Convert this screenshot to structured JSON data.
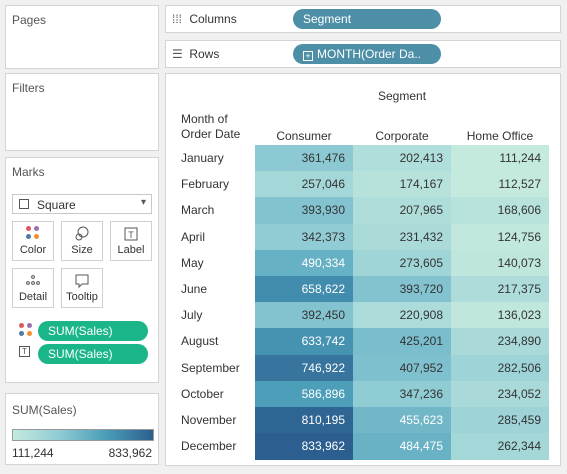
{
  "panels": {
    "pages": "Pages",
    "filters": "Filters",
    "marks": "Marks"
  },
  "shelves": {
    "columns": {
      "label": "Columns",
      "pill": "Segment"
    },
    "rows": {
      "label": "Rows",
      "pill": "MONTH(Order Da.."
    }
  },
  "marks": {
    "mark_type": "Square",
    "buttons": [
      {
        "label": "Color",
        "icon": "color-dots-icon"
      },
      {
        "label": "Size",
        "icon": "size-icon"
      },
      {
        "label": "Label",
        "icon": "label-icon"
      },
      {
        "label": "Detail",
        "icon": "detail-icon"
      },
      {
        "label": "Tooltip",
        "icon": "tooltip-icon"
      }
    ],
    "pills": [
      {
        "label": "SUM(Sales)",
        "icon": "color-dots-icon"
      },
      {
        "label": "SUM(Sales)",
        "icon": "label-icon",
        "glyph": "T"
      }
    ]
  },
  "legend": {
    "title": "SUM(Sales)",
    "min": "111,244",
    "max": "833,962",
    "min_value": 111244,
    "max_value": 833962
  },
  "table": {
    "column_title": "Segment",
    "row_header": [
      "Month of",
      "Order Date"
    ],
    "columns": [
      "Consumer",
      "Corporate",
      "Home Office"
    ],
    "rows": [
      {
        "month": "January",
        "values": [
          "361,476",
          "202,413",
          "111,244"
        ],
        "raw": [
          361476,
          202413,
          111244
        ]
      },
      {
        "month": "February",
        "values": [
          "257,046",
          "174,167",
          "112,527"
        ],
        "raw": [
          257046,
          174167,
          112527
        ]
      },
      {
        "month": "March",
        "values": [
          "393,930",
          "207,965",
          "168,606"
        ],
        "raw": [
          393930,
          207965,
          168606
        ]
      },
      {
        "month": "April",
        "values": [
          "342,373",
          "231,432",
          "124,756"
        ],
        "raw": [
          342373,
          231432,
          124756
        ]
      },
      {
        "month": "May",
        "values": [
          "490,334",
          "273,605",
          "140,073"
        ],
        "raw": [
          490334,
          273605,
          140073
        ]
      },
      {
        "month": "June",
        "values": [
          "658,622",
          "393,720",
          "217,375"
        ],
        "raw": [
          658622,
          393720,
          217375
        ]
      },
      {
        "month": "July",
        "values": [
          "392,450",
          "220,908",
          "136,023"
        ],
        "raw": [
          392450,
          220908,
          136023
        ]
      },
      {
        "month": "August",
        "values": [
          "633,742",
          "425,201",
          "234,890"
        ],
        "raw": [
          633742,
          425201,
          234890
        ]
      },
      {
        "month": "September",
        "values": [
          "746,922",
          "407,952",
          "282,506"
        ],
        "raw": [
          746922,
          407952,
          282506
        ]
      },
      {
        "month": "October",
        "values": [
          "586,896",
          "347,236",
          "234,052"
        ],
        "raw": [
          586896,
          347236,
          234052
        ]
      },
      {
        "month": "November",
        "values": [
          "810,195",
          "455,623",
          "285,459"
        ],
        "raw": [
          810195,
          455623,
          285459
        ]
      },
      {
        "month": "December",
        "values": [
          "833,962",
          "484,475",
          "262,344"
        ],
        "raw": [
          833962,
          484475,
          262344
        ]
      }
    ]
  },
  "colors": {
    "pill_dimension": "#4e8fa8",
    "pill_measure": "#1ab68a",
    "low": "#c4eade",
    "high": "#2c5f8f"
  }
}
